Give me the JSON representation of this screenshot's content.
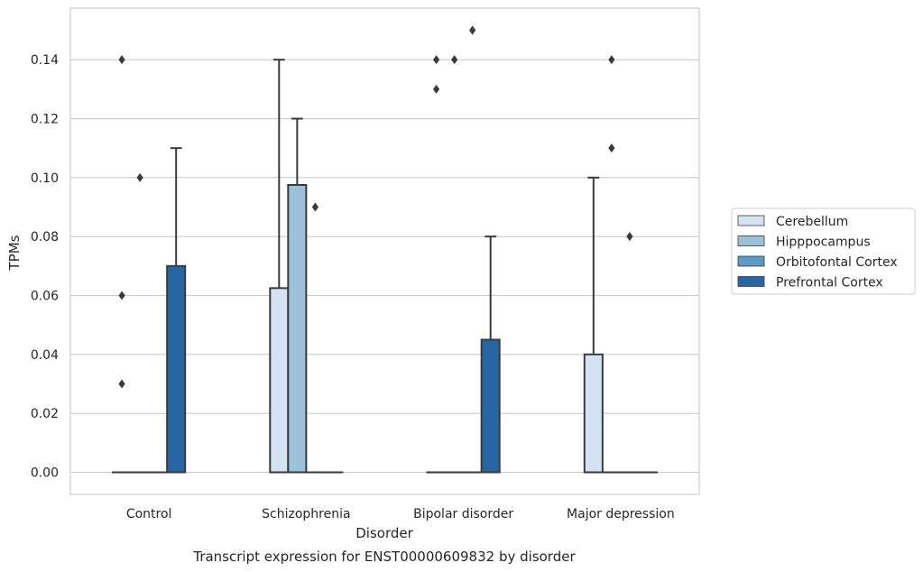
{
  "caption": "Transcript expression for ENST00000609832 by disorder",
  "chart_data": {
    "type": "box",
    "title": "",
    "xlabel": "Disorder",
    "ylabel": "TPMs",
    "ylim": [
      -0.0075,
      0.1575
    ],
    "yticks": [
      0.0,
      0.02,
      0.04,
      0.06,
      0.08,
      0.1,
      0.12,
      0.14
    ],
    "ytick_labels": [
      "0.00",
      "0.02",
      "0.04",
      "0.06",
      "0.08",
      "0.10",
      "0.12",
      "0.14"
    ],
    "grid": "horizontal",
    "legend_position": "right",
    "categories": [
      "Control",
      "Schizophrenia",
      "Bipolar disorder",
      "Major depression"
    ],
    "series": [
      {
        "name": "Cerebellum",
        "color": "#d3e3f1",
        "boxes": [
          {
            "q1": 0,
            "median": 0,
            "q3": 0,
            "whisker_low": 0,
            "whisker_high": 0,
            "outliers": [
              0.14,
              0.06,
              0.03
            ]
          },
          {
            "q1": 0,
            "median": 0,
            "q3": 0.0625,
            "whisker_low": 0,
            "whisker_high": 0.14,
            "outliers": []
          },
          {
            "q1": 0,
            "median": 0,
            "q3": 0,
            "whisker_low": 0,
            "whisker_high": 0,
            "outliers": [
              0.14,
              0.13
            ]
          },
          {
            "q1": 0,
            "median": 0,
            "q3": 0.04,
            "whisker_low": 0,
            "whisker_high": 0.1,
            "outliers": []
          }
        ]
      },
      {
        "name": "Hipppocampus",
        "color": "#9dc1d9",
        "boxes": [
          {
            "q1": 0,
            "median": 0,
            "q3": 0,
            "whisker_low": 0,
            "whisker_high": 0,
            "outliers": [
              0.1
            ]
          },
          {
            "q1": 0,
            "median": 0,
            "q3": 0.0975,
            "whisker_low": 0,
            "whisker_high": 0.12,
            "outliers": []
          },
          {
            "q1": 0,
            "median": 0,
            "q3": 0,
            "whisker_low": 0,
            "whisker_high": 0,
            "outliers": [
              0.14
            ]
          },
          {
            "q1": 0,
            "median": 0,
            "q3": 0,
            "whisker_low": 0,
            "whisker_high": 0,
            "outliers": [
              0.14,
              0.11
            ]
          }
        ]
      },
      {
        "name": "Orbitofontal Cortex",
        "color": "#5a9ac5",
        "boxes": [
          {
            "q1": 0,
            "median": 0,
            "q3": 0,
            "whisker_low": 0,
            "whisker_high": 0,
            "outliers": []
          },
          {
            "q1": 0,
            "median": 0,
            "q3": 0,
            "whisker_low": 0,
            "whisker_high": 0,
            "outliers": [
              0.09
            ]
          },
          {
            "q1": 0,
            "median": 0,
            "q3": 0,
            "whisker_low": 0,
            "whisker_high": 0,
            "outliers": [
              0.15
            ]
          },
          {
            "q1": 0,
            "median": 0,
            "q3": 0,
            "whisker_low": 0,
            "whisker_high": 0,
            "outliers": [
              0.08
            ]
          }
        ]
      },
      {
        "name": "Prefrontal Cortex",
        "color": "#2866a3",
        "boxes": [
          {
            "q1": 0,
            "median": 0,
            "q3": 0.07,
            "whisker_low": 0,
            "whisker_high": 0.11,
            "outliers": []
          },
          {
            "q1": 0,
            "median": 0,
            "q3": 0,
            "whisker_low": 0,
            "whisker_high": 0,
            "outliers": []
          },
          {
            "q1": 0,
            "median": 0,
            "q3": 0.045,
            "whisker_low": 0,
            "whisker_high": 0.08,
            "outliers": []
          },
          {
            "q1": 0,
            "median": 0,
            "q3": 0,
            "whisker_low": 0,
            "whisker_high": 0,
            "outliers": []
          }
        ]
      }
    ]
  }
}
